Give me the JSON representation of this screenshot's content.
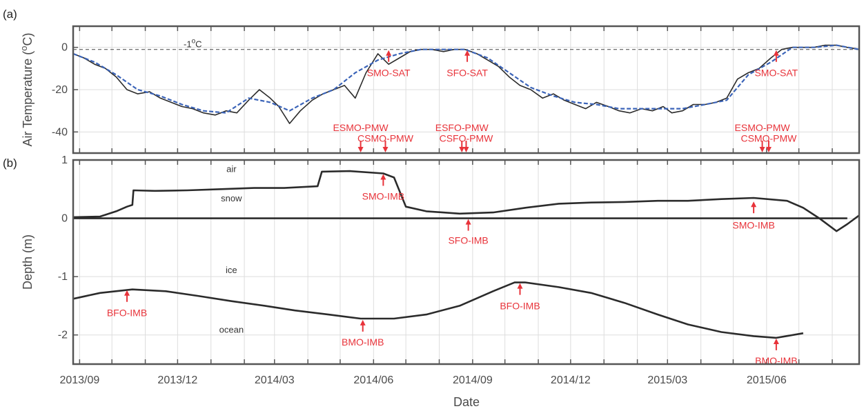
{
  "chart_data": [
    {
      "panel": "(a)",
      "type": "line",
      "ylabel": "Air Temperature (",
      "ylabel_unit": "C)",
      "ylabel_sup": "o",
      "ylim": [
        -50,
        10
      ],
      "yticks": [
        0,
        -20,
        -40
      ],
      "xlim": [
        "2013-08-26",
        "2015-08-26"
      ],
      "grid": true,
      "reference_line": {
        "y": -1,
        "label": "-1",
        "label_sup": "o",
        "label_unit": "C",
        "style": "dashed"
      },
      "series": [
        {
          "color": "#2b2b2b",
          "x": [
            "2013-08-26",
            "2013-09-05",
            "2013-09-15",
            "2013-09-25",
            "2013-10-05",
            "2013-10-15",
            "2013-10-25",
            "2013-11-05",
            "2013-11-15",
            "2013-11-25",
            "2013-12-05",
            "2013-12-15",
            "2013-12-25",
            "2014-01-05",
            "2014-01-15",
            "2014-01-25",
            "2014-02-05",
            "2014-02-15",
            "2014-02-25",
            "2014-03-05",
            "2014-03-15",
            "2014-03-25",
            "2014-04-05",
            "2014-04-15",
            "2014-04-25",
            "2014-05-05",
            "2014-05-15",
            "2014-05-25",
            "2014-06-05",
            "2014-06-15",
            "2014-06-25",
            "2014-07-05",
            "2014-07-15",
            "2014-07-25",
            "2014-08-05",
            "2014-08-15",
            "2014-08-25",
            "2014-09-05",
            "2014-09-15",
            "2014-09-25",
            "2014-10-05",
            "2014-10-15",
            "2014-10-25",
            "2014-11-05",
            "2014-11-15",
            "2014-11-25",
            "2014-12-05",
            "2014-12-15",
            "2014-12-25",
            "2015-01-05",
            "2015-01-15",
            "2015-01-25",
            "2015-02-05",
            "2015-02-15",
            "2015-02-25",
            "2015-03-05",
            "2015-03-15",
            "2015-03-25",
            "2015-04-05",
            "2015-04-15",
            "2015-04-25",
            "2015-05-05",
            "2015-05-15",
            "2015-05-25",
            "2015-06-05",
            "2015-06-15",
            "2015-06-25",
            "2015-07-05",
            "2015-07-15",
            "2015-07-25",
            "2015-08-05",
            "2015-08-15",
            "2015-08-26"
          ],
          "y": [
            -3,
            -5,
            -8,
            -10,
            -14,
            -20,
            -22,
            -21,
            -24,
            -26,
            -28,
            -29,
            -31,
            -32,
            -30,
            -31,
            -25,
            -20,
            -24,
            -28,
            -36,
            -30,
            -25,
            -22,
            -20,
            -18,
            -24,
            -12,
            -3,
            -8,
            -5,
            -2,
            -1,
            -1,
            -2,
            -1,
            -1,
            -3,
            -6,
            -9,
            -14,
            -18,
            -20,
            -24,
            -22,
            -25,
            -27,
            -29,
            -26,
            -28,
            -30,
            -31,
            -29,
            -30,
            -28,
            -31,
            -30,
            -27,
            -27,
            -26,
            -24,
            -15,
            -12,
            -10,
            -5,
            -1,
            0,
            0,
            0,
            1,
            1,
            0,
            -1
          ]
        },
        {
          "color": "#3a63b8",
          "x": [
            "2013-08-26",
            "2013-09-15",
            "2013-10-05",
            "2013-10-25",
            "2013-11-15",
            "2013-12-05",
            "2013-12-25",
            "2014-01-15",
            "2014-02-05",
            "2014-02-25",
            "2014-03-15",
            "2014-04-05",
            "2014-04-25",
            "2014-05-15",
            "2014-06-05",
            "2014-06-25",
            "2014-07-15",
            "2014-08-05",
            "2014-08-25",
            "2014-09-15",
            "2014-10-05",
            "2014-10-25",
            "2014-11-15",
            "2014-12-05",
            "2014-12-25",
            "2015-01-15",
            "2015-02-05",
            "2015-02-25",
            "2015-03-15",
            "2015-04-05",
            "2015-04-25",
            "2015-05-15",
            "2015-06-05",
            "2015-06-25",
            "2015-07-15",
            "2015-08-05",
            "2015-08-26"
          ],
          "y": [
            -3,
            -7,
            -13,
            -20,
            -23,
            -27,
            -30,
            -31,
            -24,
            -26,
            -30,
            -24,
            -20,
            -12,
            -6,
            -3,
            -1,
            -1,
            -1,
            -5,
            -12,
            -19,
            -23,
            -26,
            -27,
            -29,
            -29,
            -29,
            -29,
            -27,
            -25,
            -13,
            -7,
            0,
            0,
            1,
            -1
          ]
        }
      ],
      "annotations": [
        {
          "label": "SMO-SAT",
          "x": "2014-06-15",
          "direction": "up",
          "target_y": -1,
          "label_y": -12
        },
        {
          "label": "SFO-SAT",
          "x": "2014-08-27",
          "direction": "up",
          "target_y": -1,
          "label_y": -12
        },
        {
          "label": "SMO-SAT",
          "x": "2015-06-10",
          "direction": "up",
          "target_y": -1,
          "label_y": -12
        },
        {
          "label": "ESMO-PMW",
          "x": "2014-05-20",
          "direction": "down",
          "label_y": -38
        },
        {
          "label": "CSMO-PMW",
          "x": "2014-06-12",
          "direction": "down",
          "label_y": -43
        },
        {
          "label": "ESFO-PMW",
          "x": "2014-08-22",
          "direction": "down",
          "label_y": -38
        },
        {
          "label": "CSFO-PMW",
          "x": "2014-08-26",
          "direction": "down",
          "label_y": -43
        },
        {
          "label": "ESMO-PMW",
          "x": "2015-05-28",
          "direction": "down",
          "label_y": -38
        },
        {
          "label": "CSMO-PMW",
          "x": "2015-06-03",
          "direction": "down",
          "label_y": -43
        }
      ]
    },
    {
      "panel": "(b)",
      "type": "line",
      "ylabel": "Depth (m)",
      "xlabel": "Date",
      "ylim": [
        -2.5,
        1
      ],
      "yticks": [
        1,
        0,
        -1,
        -2
      ],
      "xlim": [
        "2013-08-26",
        "2015-08-26"
      ],
      "xticks": [
        "2013/09",
        "2013/12",
        "2014/03",
        "2014/06",
        "2014/09",
        "2014/12",
        "2015/03",
        "2015/06"
      ],
      "grid": true,
      "region_labels": [
        {
          "text": "air",
          "x": "2014-01-20",
          "y": 0.85
        },
        {
          "text": "snow",
          "x": "2014-01-20",
          "y": 0.35
        },
        {
          "text": "ice",
          "x": "2014-01-20",
          "y": -0.88
        },
        {
          "text": "ocean",
          "x": "2014-01-20",
          "y": -1.9
        }
      ],
      "series": [
        {
          "name": "snow surface",
          "color": "#2b2b2b",
          "x": [
            "2013-08-26",
            "2013-09-20",
            "2013-10-05",
            "2013-10-15",
            "2013-10-20",
            "2013-10-21",
            "2013-11-10",
            "2013-12-10",
            "2014-01-10",
            "2014-02-10",
            "2014-03-10",
            "2014-04-10",
            "2014-04-14",
            "2014-05-10",
            "2014-06-10",
            "2014-06-20",
            "2014-07-01",
            "2014-07-20",
            "2014-08-20",
            "2014-09-20",
            "2014-10-20",
            "2014-11-20",
            "2014-12-20",
            "2015-01-20",
            "2015-02-20",
            "2015-03-20",
            "2015-04-20",
            "2015-05-20",
            "2015-06-20",
            "2015-07-05",
            "2015-07-20",
            "2015-08-05",
            "2015-08-15",
            "2015-08-26"
          ],
          "y": [
            0.02,
            0.03,
            0.12,
            0.2,
            0.23,
            0.48,
            0.47,
            0.48,
            0.5,
            0.52,
            0.52,
            0.55,
            0.8,
            0.81,
            0.77,
            0.7,
            0.2,
            0.12,
            0.08,
            0.1,
            0.18,
            0.25,
            0.27,
            0.28,
            0.3,
            0.3,
            0.33,
            0.35,
            0.3,
            0.18,
            0.0,
            -0.22,
            -0.1,
            0.05
          ]
        },
        {
          "name": "ice surface",
          "color": "#2b2b2b",
          "x": [
            "2013-08-26",
            "2015-08-15"
          ],
          "y": [
            0.0,
            0.0
          ]
        },
        {
          "name": "ice bottom",
          "color": "#2b2b2b",
          "x": [
            "2013-08-26",
            "2013-09-20",
            "2013-10-20",
            "2013-11-20",
            "2013-12-20",
            "2014-01-20",
            "2014-02-20",
            "2014-03-20",
            "2014-04-20",
            "2014-05-20",
            "2014-06-20",
            "2014-07-20",
            "2014-08-20",
            "2014-09-20",
            "2014-10-10",
            "2014-10-20",
            "2014-11-20",
            "2014-12-20",
            "2015-01-20",
            "2015-02-20",
            "2015-03-20",
            "2015-04-20",
            "2015-05-20",
            "2015-06-10",
            "2015-07-05"
          ],
          "y": [
            -1.38,
            -1.28,
            -1.22,
            -1.25,
            -1.33,
            -1.42,
            -1.5,
            -1.58,
            -1.65,
            -1.72,
            -1.72,
            -1.65,
            -1.5,
            -1.25,
            -1.1,
            -1.1,
            -1.18,
            -1.28,
            -1.45,
            -1.65,
            -1.82,
            -1.95,
            -2.02,
            -2.05,
            -1.97
          ]
        }
      ],
      "annotations": [
        {
          "label": "SMO-IMB",
          "x": "2014-06-10",
          "direction": "up",
          "target_y": 0.77,
          "label_y": 0.38
        },
        {
          "label": "SFO-IMB",
          "x": "2014-08-28",
          "direction": "up",
          "target_y": 0.0,
          "label_y": -0.38
        },
        {
          "label": "SMO-IMB",
          "x": "2015-05-20",
          "direction": "up",
          "target_y": 0.3,
          "label_y": -0.12
        },
        {
          "label": "BFO-IMB",
          "x": "2013-10-15",
          "direction": "up",
          "target_y": -1.22,
          "label_y": -1.62
        },
        {
          "label": "BMO-IMB",
          "x": "2014-05-22",
          "direction": "up",
          "target_y": -1.73,
          "label_y": -2.12
        },
        {
          "label": "BFO-IMB",
          "x": "2014-10-15",
          "direction": "up",
          "target_y": -1.1,
          "label_y": -1.5
        },
        {
          "label": "BMO-IMB",
          "x": "2015-06-10",
          "direction": "up",
          "target_y": -2.05,
          "label_y": -2.44
        }
      ]
    }
  ]
}
